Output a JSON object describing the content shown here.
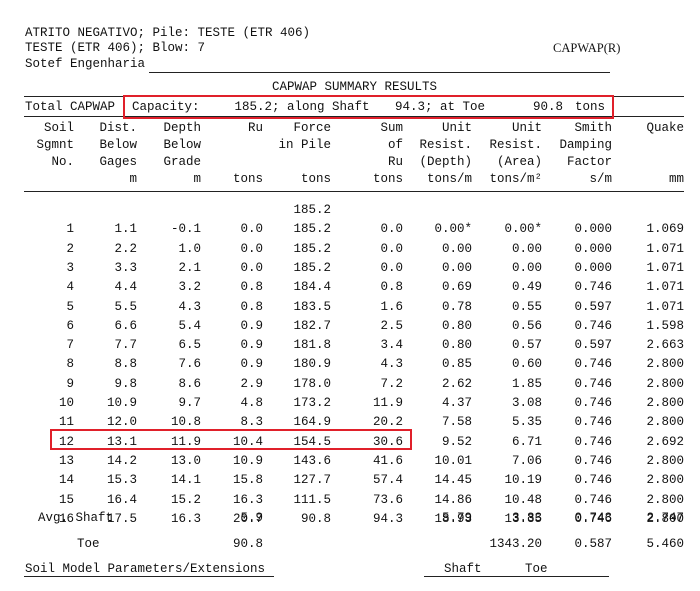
{
  "header": {
    "line1": "ATRITO NEGATIVO; Pile: TESTE (ETR 406)",
    "line2": "TESTE (ETR 406); Blow: 7",
    "brand": "CAPWAP(R)",
    "line3": "Sotef Engenharia"
  },
  "summary": {
    "title": "CAPWAP SUMMARY RESULTS",
    "label_total": "Total CAPWAP",
    "label_capacity": "Capacity:",
    "capacity": "185.2",
    "along_shaft_label": "; along Shaft",
    "shaft": "94.3",
    "at_toe_label": "; at Toe",
    "toe": "90.8",
    "units": "tons"
  },
  "columns": [
    {
      "lines": [
        "Soil",
        "Sgmnt",
        "No.",
        ""
      ]
    },
    {
      "lines": [
        "Dist.",
        "Below",
        "Gages",
        "m"
      ]
    },
    {
      "lines": [
        "Depth",
        "Below",
        "Grade",
        "m"
      ]
    },
    {
      "lines": [
        "Ru",
        "",
        "",
        "tons"
      ]
    },
    {
      "lines": [
        "Force",
        "in Pile",
        "",
        "tons"
      ]
    },
    {
      "lines": [
        "Sum",
        "of",
        "Ru",
        "tons"
      ]
    },
    {
      "lines": [
        "Unit",
        "Resist.",
        "(Depth)",
        "tons/m"
      ]
    },
    {
      "lines": [
        "Unit",
        "Resist.",
        "(Area)",
        "tons/m²"
      ]
    },
    {
      "lines": [
        "Smith",
        "Damping",
        "Factor",
        "s/m"
      ]
    },
    {
      "lines": [
        "Quake",
        "",
        "",
        "mm"
      ]
    }
  ],
  "top_force": "185.2",
  "rows": [
    [
      "1",
      "1.1",
      "-0.1",
      "0.0",
      "185.2",
      "0.0",
      "0.00*",
      "0.00*",
      "0.000",
      "1.069"
    ],
    [
      "2",
      "2.2",
      "1.0",
      "0.0",
      "185.2",
      "0.0",
      "0.00",
      "0.00",
      "0.000",
      "1.071"
    ],
    [
      "3",
      "3.3",
      "2.1",
      "0.0",
      "185.2",
      "0.0",
      "0.00",
      "0.00",
      "0.000",
      "1.071"
    ],
    [
      "4",
      "4.4",
      "3.2",
      "0.8",
      "184.4",
      "0.8",
      "0.69",
      "0.49",
      "0.746",
      "1.071"
    ],
    [
      "5",
      "5.5",
      "4.3",
      "0.8",
      "183.5",
      "1.6",
      "0.78",
      "0.55",
      "0.597",
      "1.071"
    ],
    [
      "6",
      "6.6",
      "5.4",
      "0.9",
      "182.7",
      "2.5",
      "0.80",
      "0.56",
      "0.746",
      "1.598"
    ],
    [
      "7",
      "7.7",
      "6.5",
      "0.9",
      "181.8",
      "3.4",
      "0.80",
      "0.57",
      "0.597",
      "2.663"
    ],
    [
      "8",
      "8.8",
      "7.6",
      "0.9",
      "180.9",
      "4.3",
      "0.85",
      "0.60",
      "0.746",
      "2.800"
    ],
    [
      "9",
      "9.8",
      "8.6",
      "2.9",
      "178.0",
      "7.2",
      "2.62",
      "1.85",
      "0.746",
      "2.800"
    ],
    [
      "10",
      "10.9",
      "9.7",
      "4.8",
      "173.2",
      "11.9",
      "4.37",
      "3.08",
      "0.746",
      "2.800"
    ],
    [
      "11",
      "12.0",
      "10.8",
      "8.3",
      "164.9",
      "20.2",
      "7.58",
      "5.35",
      "0.746",
      "2.800"
    ],
    [
      "12",
      "13.1",
      "11.9",
      "10.4",
      "154.5",
      "30.6",
      "9.52",
      "6.71",
      "0.746",
      "2.692"
    ],
    [
      "13",
      "14.2",
      "13.0",
      "10.9",
      "143.6",
      "41.6",
      "10.01",
      "7.06",
      "0.746",
      "2.800"
    ],
    [
      "14",
      "15.3",
      "14.1",
      "15.8",
      "127.7",
      "57.4",
      "14.45",
      "10.19",
      "0.746",
      "2.800"
    ],
    [
      "15",
      "16.4",
      "15.2",
      "16.3",
      "111.5",
      "73.6",
      "14.86",
      "10.48",
      "0.746",
      "2.800"
    ],
    [
      "16",
      "17.5",
      "16.3",
      "20.7",
      "90.8",
      "94.3",
      "18.93",
      "13.35",
      "0.746",
      "2.800"
    ]
  ],
  "avg_shaft": {
    "label": "Avg. Shaft",
    "ru": "5.9",
    "unit_depth": "5.79",
    "unit_area": "3.83",
    "smith": "0.743",
    "quake": "2.747"
  },
  "toe_row": {
    "label": "Toe",
    "ru": "90.8",
    "unit_area": "1343.20",
    "smith": "0.587",
    "quake": "5.460"
  },
  "footer": {
    "label": "Soil Model Parameters/Extensions",
    "shaft": "Shaft",
    "toe": "Toe"
  }
}
